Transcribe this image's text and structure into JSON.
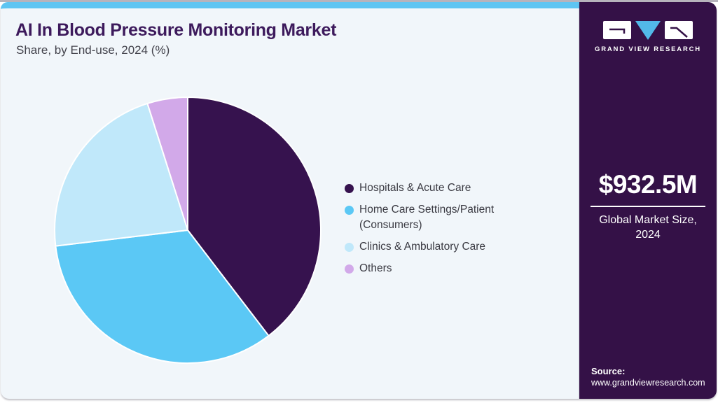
{
  "header": {
    "title": "AI In Blood Pressure Monitoring Market",
    "subtitle": "Share, by End-use, 2024 (%)"
  },
  "chart_data": {
    "type": "pie",
    "title": "AI In Blood Pressure Monitoring Market Share, by End-use, 2024 (%)",
    "unit": "%",
    "start_angle_deg": 0,
    "direction": "clockwise",
    "legend_position": "right",
    "series": [
      {
        "name": "Hospitals & Acute Care",
        "value": 39.6,
        "color": "#36124e"
      },
      {
        "name": "Home Care Settings/Patient (Consumers)",
        "value": 33.5,
        "color": "#5bc8f5"
      },
      {
        "name": "Clinics & Ambulatory Care",
        "value": 22.0,
        "color": "#c0e8fa"
      },
      {
        "name": "Others",
        "value": 4.9,
        "color": "#d2a9e9"
      }
    ]
  },
  "sidebar": {
    "logo_text": "GRAND VIEW RESEARCH",
    "market_size_value": "$932.5M",
    "market_size_label_line1": "Global Market Size,",
    "market_size_label_line2": "2024",
    "source_label": "Source:",
    "source_url": "www.grandviewresearch.com"
  },
  "colors": {
    "accent_bar": "#5ec5f2",
    "card_background": "#f1f6fa",
    "sidebar_background": "#341147",
    "title_text": "#3d1a5c",
    "logo_triangle": "#52b9e9",
    "slice_gap": "#ffffff"
  }
}
